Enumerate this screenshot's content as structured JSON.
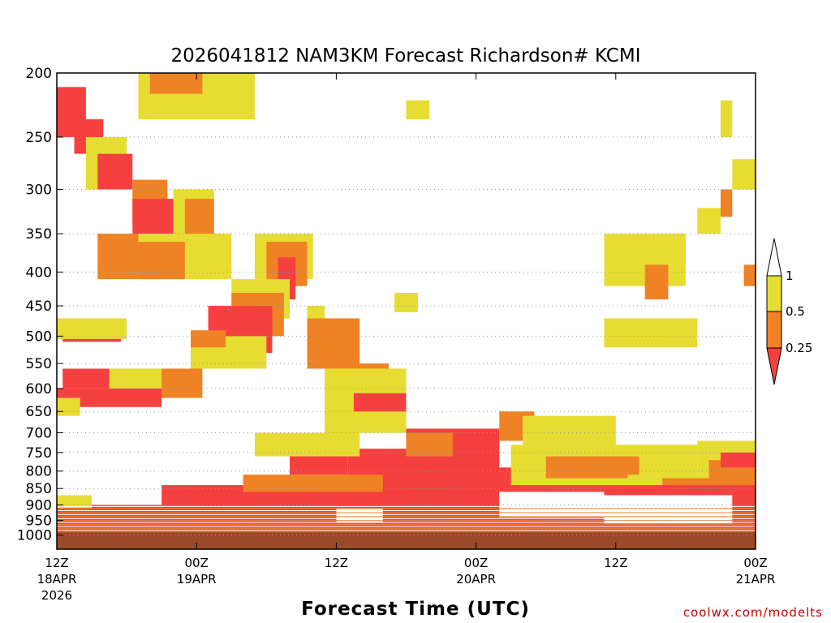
{
  "chart_data": {
    "type": "heatmap",
    "title": "2026041812 NAM3KM Forecast Richardson# KCMI",
    "xlabel": "Forecast Time (UTC)",
    "ylabel": "",
    "y_scale": "pressure (inverted)",
    "ylim": [
      1000,
      200
    ],
    "xlim_hours": [
      0,
      60
    ],
    "grid": "dotted horizontal",
    "y_ticks": [
      200,
      250,
      300,
      350,
      400,
      450,
      500,
      550,
      600,
      650,
      700,
      750,
      800,
      850,
      900,
      950,
      1000
    ],
    "x_ticks": [
      {
        "hour": 0,
        "label": "12Z",
        "date": "18APR",
        "year": "2026"
      },
      {
        "hour": 12,
        "label": "00Z",
        "date": "19APR",
        "year": ""
      },
      {
        "hour": 24,
        "label": "12Z",
        "date": "",
        "year": ""
      },
      {
        "hour": 36,
        "label": "00Z",
        "date": "20APR",
        "year": ""
      },
      {
        "hour": 48,
        "label": "12Z",
        "date": "",
        "year": ""
      },
      {
        "hour": 60,
        "label": "00Z",
        "date": "21APR",
        "year": ""
      }
    ],
    "levels": [
      {
        "label": "0.25",
        "range": "< 0.25",
        "color": "#f54040"
      },
      {
        "label": "0.5",
        "range": "0.25 - 0.5",
        "color": "#ee8224"
      },
      {
        "label": "1",
        "range": "0.5 - 1",
        "color": "#e6dc32"
      },
      {
        "label": "",
        "range": "> 1",
        "color": "#ffffff"
      }
    ],
    "surface_color": "#9a4a28",
    "regions": [
      {
        "cat": "yellow",
        "t": [
          7,
          17
        ],
        "p": [
          200,
          235
        ]
      },
      {
        "cat": "orange",
        "t": [
          8,
          12.5
        ],
        "p": [
          200,
          215
        ]
      },
      {
        "cat": "red",
        "t": [
          0,
          2.5
        ],
        "p": [
          210,
          250
        ]
      },
      {
        "cat": "red",
        "t": [
          1.5,
          4
        ],
        "p": [
          235,
          265
        ]
      },
      {
        "cat": "yellow",
        "t": [
          2.5,
          6
        ],
        "p": [
          250,
          300
        ]
      },
      {
        "cat": "red",
        "t": [
          3.5,
          6.5
        ],
        "p": [
          265,
          300
        ]
      },
      {
        "cat": "orange",
        "t": [
          6.5,
          9.5
        ],
        "p": [
          290,
          340
        ]
      },
      {
        "cat": "red",
        "t": [
          6.5,
          10.5
        ],
        "p": [
          310,
          360
        ]
      },
      {
        "cat": "yellow",
        "t": [
          10,
          13.5
        ],
        "p": [
          300,
          410
        ]
      },
      {
        "cat": "orange",
        "t": [
          11,
          13.5
        ],
        "p": [
          310,
          360
        ]
      },
      {
        "cat": "orange",
        "t": [
          3.5,
          7
        ],
        "p": [
          350,
          410
        ]
      },
      {
        "cat": "yellow",
        "t": [
          7,
          15
        ],
        "p": [
          350,
          410
        ]
      },
      {
        "cat": "orange",
        "t": [
          7,
          11
        ],
        "p": [
          360,
          410
        ]
      },
      {
        "cat": "yellow",
        "t": [
          17,
          22
        ],
        "p": [
          350,
          410
        ]
      },
      {
        "cat": "orange",
        "t": [
          18,
          21.5
        ],
        "p": [
          360,
          420
        ]
      },
      {
        "cat": "red",
        "t": [
          19,
          20.5
        ],
        "p": [
          380,
          440
        ]
      },
      {
        "cat": "yellow",
        "t": [
          15,
          20
        ],
        "p": [
          410,
          470
        ]
      },
      {
        "cat": "orange",
        "t": [
          15,
          19.5
        ],
        "p": [
          430,
          500
        ]
      },
      {
        "cat": "red",
        "t": [
          13,
          18.5
        ],
        "p": [
          450,
          530
        ]
      },
      {
        "cat": "yellow",
        "t": [
          11.5,
          18
        ],
        "p": [
          500,
          560
        ]
      },
      {
        "cat": "orange",
        "t": [
          11.5,
          14.5
        ],
        "p": [
          490,
          520
        ]
      },
      {
        "cat": "red",
        "t": [
          0.5,
          5.5
        ],
        "p": [
          480,
          510
        ]
      },
      {
        "cat": "yellow",
        "t": [
          0,
          6
        ],
        "p": [
          470,
          505
        ]
      },
      {
        "cat": "yellow",
        "t": [
          4,
          12
        ],
        "p": [
          560,
          600
        ]
      },
      {
        "cat": "orange",
        "t": [
          9,
          12.5
        ],
        "p": [
          560,
          620
        ]
      },
      {
        "cat": "red",
        "t": [
          0.5,
          4.5
        ],
        "p": [
          560,
          600
        ]
      },
      {
        "cat": "red",
        "t": [
          0,
          9
        ],
        "p": [
          600,
          640
        ]
      },
      {
        "cat": "yellow",
        "t": [
          0,
          2
        ],
        "p": [
          620,
          660
        ]
      },
      {
        "cat": "yellow",
        "t": [
          21.5,
          23
        ],
        "p": [
          450,
          560
        ]
      },
      {
        "cat": "orange",
        "t": [
          21.5,
          26
        ],
        "p": [
          470,
          560
        ]
      },
      {
        "cat": "orange",
        "t": [
          24,
          28.5
        ],
        "p": [
          550,
          620
        ]
      },
      {
        "cat": "yellow",
        "t": [
          23,
          30
        ],
        "p": [
          560,
          700
        ]
      },
      {
        "cat": "red",
        "t": [
          25.5,
          30
        ],
        "p": [
          610,
          650
        ]
      },
      {
        "cat": "red",
        "t": [
          20,
          25
        ],
        "p": [
          700,
          810
        ]
      },
      {
        "cat": "red",
        "t": [
          25,
          30
        ],
        "p": [
          740,
          860
        ]
      },
      {
        "cat": "red",
        "t": [
          30,
          38
        ],
        "p": [
          690,
          840
        ]
      },
      {
        "cat": "orange",
        "t": [
          30,
          34
        ],
        "p": [
          700,
          760
        ]
      },
      {
        "cat": "yellow",
        "t": [
          17,
          26
        ],
        "p": [
          700,
          760
        ]
      },
      {
        "cat": "orange",
        "t": [
          38,
          41
        ],
        "p": [
          650,
          720
        ]
      },
      {
        "cat": "red",
        "t": [
          37,
          40
        ],
        "p": [
          790,
          860
        ]
      },
      {
        "cat": "yellow",
        "t": [
          40,
          48
        ],
        "p": [
          660,
          730
        ]
      },
      {
        "cat": "yellow",
        "t": [
          39,
          55
        ],
        "p": [
          730,
          840
        ]
      },
      {
        "cat": "orange",
        "t": [
          42,
          50
        ],
        "p": [
          760,
          820
        ]
      },
      {
        "cat": "yellow",
        "t": [
          49,
          56
        ],
        "p": [
          810,
          840
        ]
      },
      {
        "cat": "orange",
        "t": [
          52,
          58
        ],
        "p": [
          820,
          870
        ]
      },
      {
        "cat": "yellow",
        "t": [
          55,
          60
        ],
        "p": [
          720,
          810
        ]
      },
      {
        "cat": "orange",
        "t": [
          56,
          60
        ],
        "p": [
          770,
          860
        ]
      },
      {
        "cat": "red",
        "t": [
          57,
          60
        ],
        "p": [
          750,
          790
        ]
      },
      {
        "cat": "yellow",
        "t": [
          47,
          54
        ],
        "p": [
          350,
          420
        ]
      },
      {
        "cat": "yellow",
        "t": [
          47,
          55
        ],
        "p": [
          470,
          520
        ]
      },
      {
        "cat": "orange",
        "t": [
          50.5,
          52.5
        ],
        "p": [
          390,
          440
        ]
      },
      {
        "cat": "yellow",
        "t": [
          55,
          57
        ],
        "p": [
          320,
          350
        ]
      },
      {
        "cat": "yellow",
        "t": [
          58,
          60
        ],
        "p": [
          270,
          300
        ]
      },
      {
        "cat": "orange",
        "t": [
          59,
          60
        ],
        "p": [
          390,
          420
        ]
      },
      {
        "cat": "orange",
        "t": [
          57,
          58
        ],
        "p": [
          300,
          330
        ]
      },
      {
        "cat": "yellow",
        "t": [
          30,
          32
        ],
        "p": [
          220,
          235
        ]
      },
      {
        "cat": "yellow",
        "t": [
          29,
          31
        ],
        "p": [
          430,
          460
        ]
      },
      {
        "cat": "yellow",
        "t": [
          57,
          58
        ],
        "p": [
          220,
          250
        ]
      },
      {
        "cat": "red",
        "t": [
          9,
          60
        ],
        "p": [
          840,
          990
        ]
      },
      {
        "cat": "red",
        "t": [
          0,
          60
        ],
        "p": [
          900,
          990
        ]
      },
      {
        "cat": "orange",
        "t": [
          16,
          28
        ],
        "p": [
          810,
          860
        ]
      },
      {
        "cat": "yellow",
        "t": [
          0,
          3
        ],
        "p": [
          870,
          910
        ]
      }
    ],
    "gaps": [
      {
        "t": [
          38,
          47
        ],
        "p": [
          860,
          940
        ]
      },
      {
        "t": [
          47,
          58
        ],
        "p": [
          870,
          960
        ]
      },
      {
        "t": [
          24,
          28
        ],
        "p": [
          910,
          955
        ]
      },
      {
        "t": [
          0,
          3
        ],
        "p": [
          840,
          870
        ]
      }
    ]
  },
  "colorbar": {
    "tick_labels": [
      "1",
      "0.5",
      "0.25"
    ]
  },
  "credit": "coolwx.com/modelts"
}
